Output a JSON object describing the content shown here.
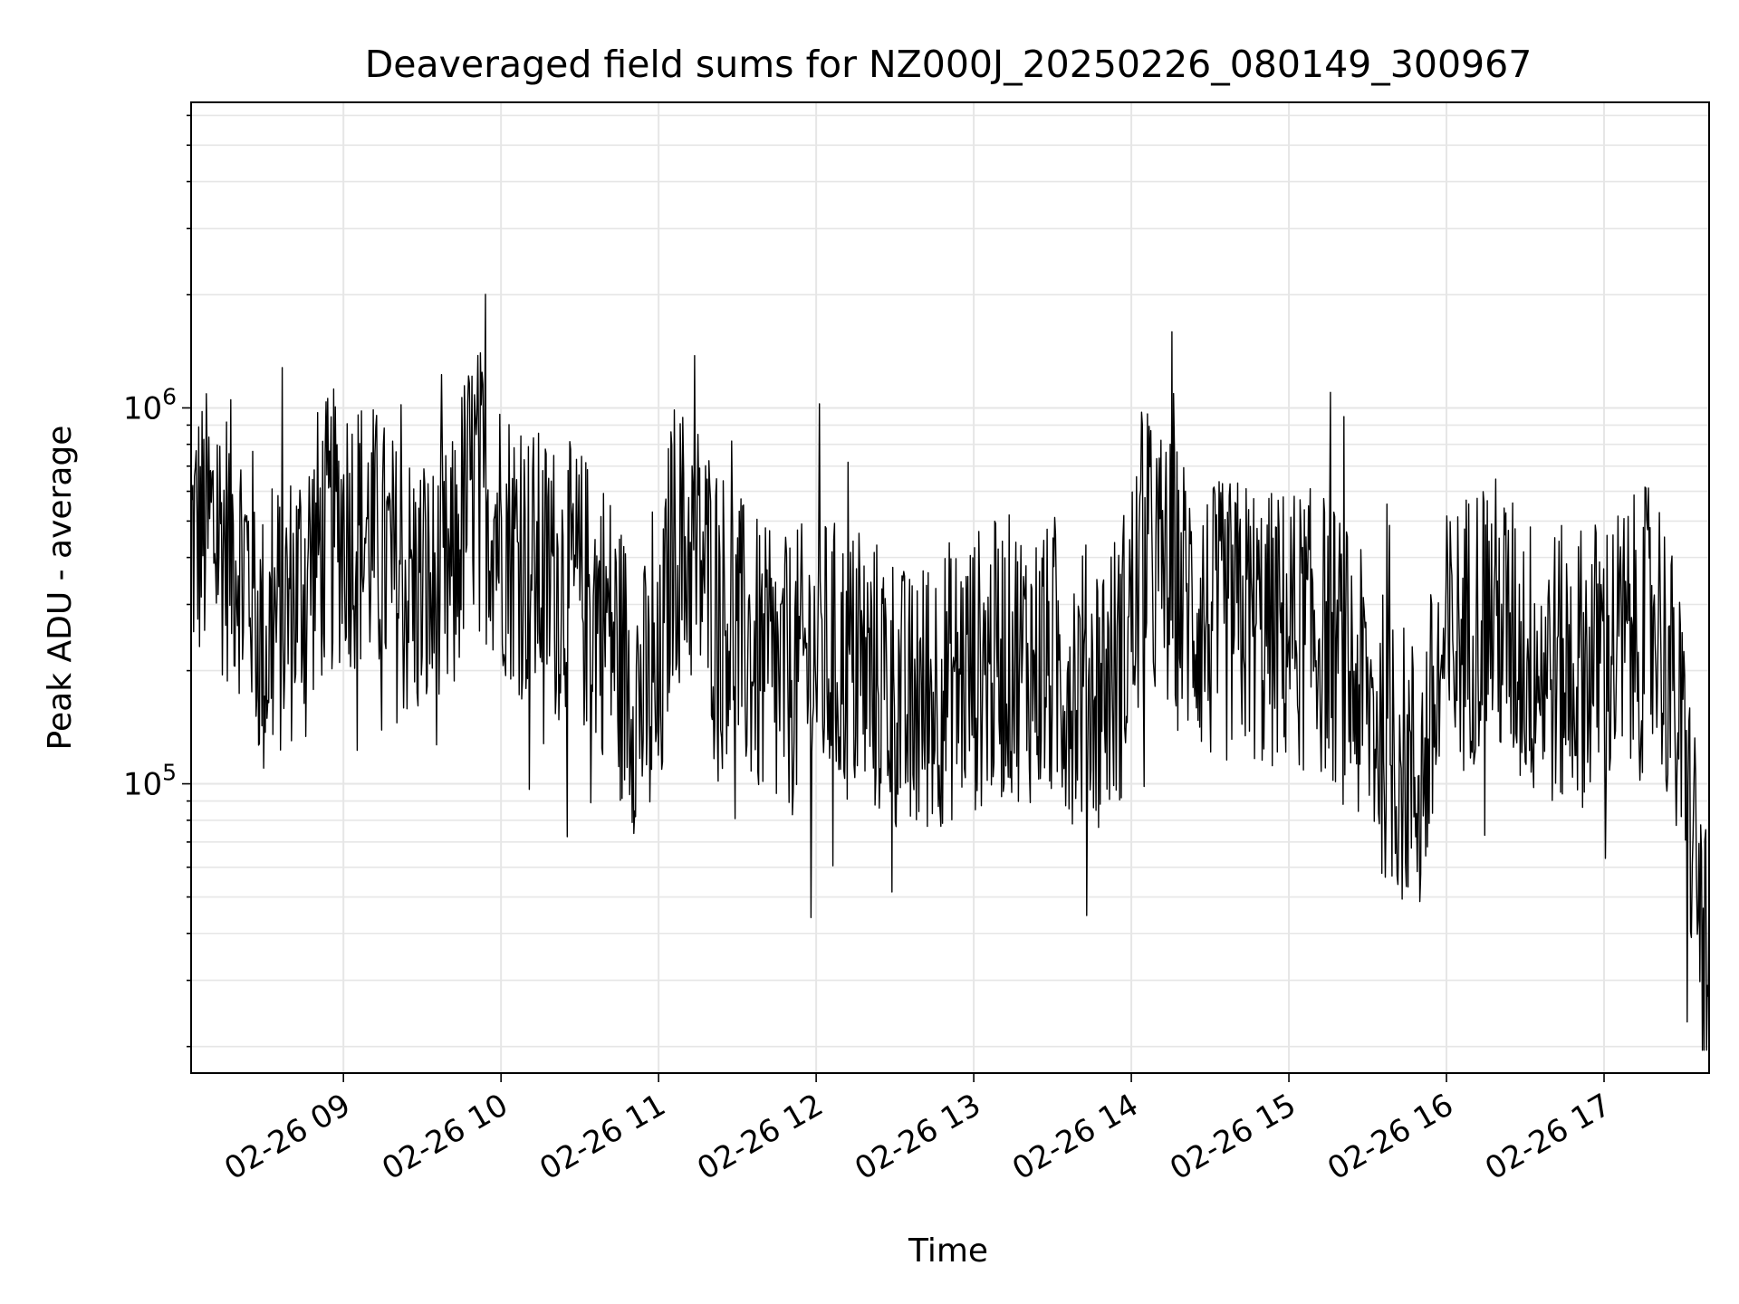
{
  "chart_data": {
    "type": "line",
    "title": "Deaveraged field sums for NZ000J_20250226_080149_300967",
    "xlabel": "Time",
    "ylabel": "Peak ADU - average",
    "x_scale": "time",
    "y_scale": "log",
    "xlim": [
      "2025-02-26 08:02",
      "2025-02-26 17:40"
    ],
    "ylim": [
      17000,
      6500000
    ],
    "x_ticks": [
      "02-26 09",
      "02-26 10",
      "02-26 11",
      "02-26 12",
      "02-26 13",
      "02-26 14",
      "02-26 15",
      "02-26 16",
      "02-26 17"
    ],
    "y_ticks": [
      {
        "base": "10",
        "exp": "5",
        "value": 100000
      },
      {
        "base": "10",
        "exp": "6",
        "value": 1000000
      }
    ],
    "grid": true,
    "line_color": "#000000",
    "series": [
      {
        "x": [
          "2025-02-26 08:02",
          "2025-02-26 08:10",
          "2025-02-26 08:20",
          "2025-02-26 08:25",
          "2025-02-26 08:28",
          "2025-02-26 08:30",
          "2025-02-26 08:33",
          "2025-02-26 08:40",
          "2025-02-26 08:50",
          "2025-02-26 09:00",
          "2025-02-26 09:10",
          "2025-02-26 09:20",
          "2025-02-26 09:30",
          "2025-02-26 09:35",
          "2025-02-26 09:42",
          "2025-02-26 09:45",
          "2025-02-26 09:50",
          "2025-02-26 10:00",
          "2025-02-26 10:10",
          "2025-02-26 10:20",
          "2025-02-26 10:30",
          "2025-02-26 10:40",
          "2025-02-26 10:45",
          "2025-02-26 10:50",
          "2025-02-26 11:00",
          "2025-02-26 11:05",
          "2025-02-26 11:15",
          "2025-02-26 11:30",
          "2025-02-26 11:45",
          "2025-02-26 12:00",
          "2025-02-26 12:15",
          "2025-02-26 12:30",
          "2025-02-26 12:35",
          "2025-02-26 12:45",
          "2025-02-26 13:00",
          "2025-02-26 13:15",
          "2025-02-26 13:30",
          "2025-02-26 13:45",
          "2025-02-26 13:55",
          "2025-02-26 14:05",
          "2025-02-26 14:15",
          "2025-02-26 14:30",
          "2025-02-26 14:45",
          "2025-02-26 14:50",
          "2025-02-26 15:00",
          "2025-02-26 15:15",
          "2025-02-26 15:30",
          "2025-02-26 15:40",
          "2025-02-26 15:50",
          "2025-02-26 16:00",
          "2025-02-26 16:15",
          "2025-02-26 16:30",
          "2025-02-26 16:45",
          "2025-02-26 17:00",
          "2025-02-26 17:15",
          "2025-02-26 17:20",
          "2025-02-26 17:30",
          "2025-02-26 17:35",
          "2025-02-26 17:40"
        ],
        "values": [
          450000,
          480000,
          420000,
          350000,
          250000,
          220000,
          260000,
          300000,
          420000,
          500000,
          450000,
          350000,
          320000,
          300000,
          350000,
          500000,
          650000,
          480000,
          380000,
          350000,
          330000,
          280000,
          220000,
          180000,
          150000,
          450000,
          400000,
          250000,
          180000,
          220000,
          200000,
          180000,
          150000,
          180000,
          200000,
          220000,
          200000,
          180000,
          200000,
          400000,
          350000,
          260000,
          280000,
          250000,
          260000,
          250000,
          160000,
          120000,
          100000,
          220000,
          300000,
          220000,
          200000,
          220000,
          250000,
          300000,
          120000,
          60000,
          25000
        ]
      }
    ]
  }
}
